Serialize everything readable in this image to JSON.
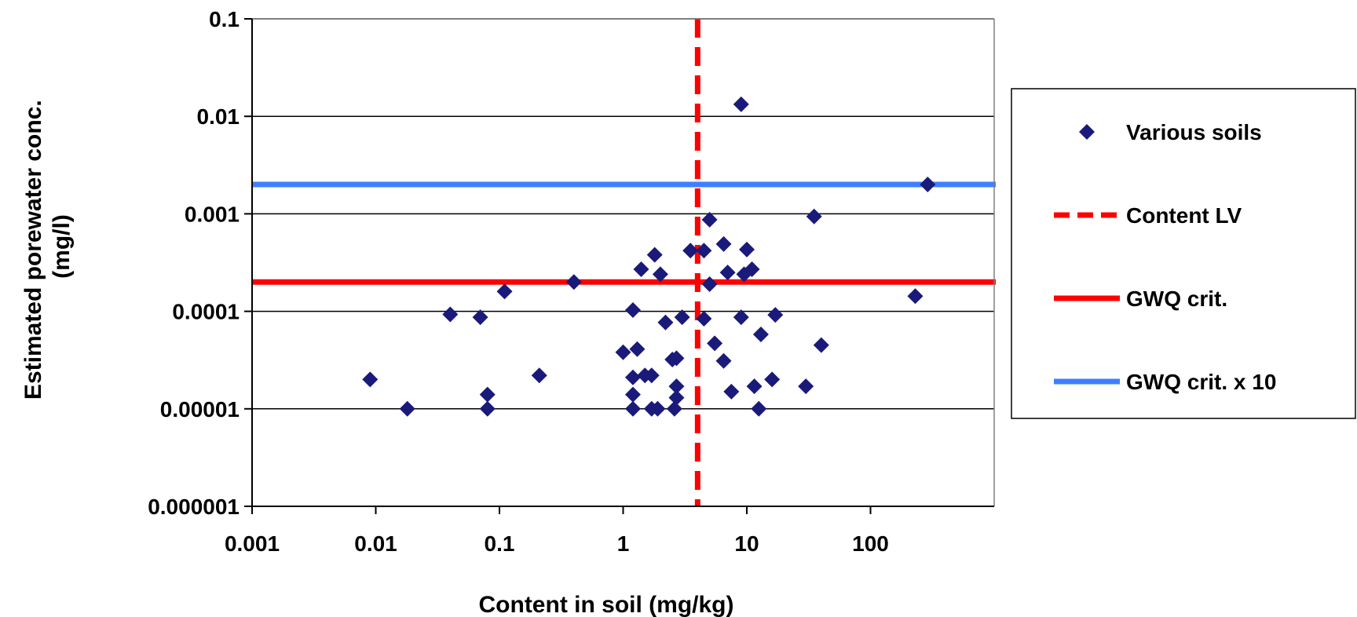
{
  "chart_data": {
    "type": "scatter",
    "title": "",
    "xlabel": "Content  in soil (mg/kg)",
    "ylabel_lines": [
      "Estimated porewater conc.",
      "(mg/l)"
    ],
    "x_scale": "log",
    "y_scale": "log",
    "xlim": [
      0.001,
      1000
    ],
    "ylim": [
      1e-06,
      0.1
    ],
    "x_ticks": [
      0.001,
      0.01,
      0.1,
      1,
      10,
      100
    ],
    "x_tick_labels": [
      "0.001",
      "0.01",
      "0.1",
      "1",
      "10",
      "100"
    ],
    "y_ticks": [
      0.1,
      0.01,
      0.001,
      0.0001,
      1e-05,
      1e-06
    ],
    "y_tick_labels": [
      "0.1",
      "0.01",
      "0.001",
      "0.0001",
      "0.00001",
      "0.000001"
    ],
    "grid": "horizontal major gridlines",
    "legend_position": "right",
    "series": [
      {
        "name": "Various soils",
        "kind": "points",
        "marker": "diamond",
        "color": "#1a1a7a",
        "points": [
          [
            0.009,
            2e-05
          ],
          [
            0.018,
            1e-05
          ],
          [
            0.04,
            9.3e-05
          ],
          [
            0.07,
            8.7e-05
          ],
          [
            0.08,
            1.4e-05
          ],
          [
            0.08,
            1e-05
          ],
          [
            0.11,
            0.00016
          ],
          [
            0.21,
            2.2e-05
          ],
          [
            0.4,
            0.0002
          ],
          [
            1.0,
            3.8e-05
          ],
          [
            1.2,
            2.1e-05
          ],
          [
            1.2,
            1.4e-05
          ],
          [
            1.2,
            1e-05
          ],
          [
            1.2,
            0.000103
          ],
          [
            1.3,
            4.1e-05
          ],
          [
            1.4,
            0.00027
          ],
          [
            1.5,
            2.2e-05
          ],
          [
            1.7,
            2.2e-05
          ],
          [
            1.7,
            1e-05
          ],
          [
            1.8,
            0.00038
          ],
          [
            1.9,
            1e-05
          ],
          [
            2.0,
            0.00024
          ],
          [
            2.2,
            7.7e-05
          ],
          [
            2.5,
            3.2e-05
          ],
          [
            2.6,
            1e-05
          ],
          [
            2.7,
            1.3e-05
          ],
          [
            2.7,
            1.7e-05
          ],
          [
            2.7,
            3.3e-05
          ],
          [
            3.0,
            8.7e-05
          ],
          [
            3.5,
            0.00042
          ],
          [
            4.5,
            8.4e-05
          ],
          [
            4.5,
            0.00042
          ],
          [
            5.0,
            0.00087
          ],
          [
            5.0,
            0.00019
          ],
          [
            5.5,
            4.7e-05
          ],
          [
            6.5,
            3.1e-05
          ],
          [
            6.5,
            0.00049
          ],
          [
            7.0,
            0.00025
          ],
          [
            7.5,
            1.5e-05
          ],
          [
            9.0,
            0.0133
          ],
          [
            9.0,
            8.7e-05
          ],
          [
            9.5,
            0.00024
          ],
          [
            10.0,
            0.00043
          ],
          [
            11.0,
            0.00027
          ],
          [
            11.5,
            1.7e-05
          ],
          [
            12.5,
            1e-05
          ],
          [
            13.0,
            5.8e-05
          ],
          [
            16.0,
            2e-05
          ],
          [
            17.0,
            9.2e-05
          ],
          [
            30.0,
            1.7e-05
          ],
          [
            35.0,
            0.00094
          ],
          [
            40.0,
            4.5e-05
          ],
          [
            230.0,
            0.000143
          ],
          [
            290.0,
            0.002
          ]
        ]
      },
      {
        "name": "Content LV",
        "kind": "vline",
        "x": 4,
        "color": "#ff0000",
        "dashed": true
      },
      {
        "name": "GWQ crit.",
        "kind": "hline",
        "y": 0.0002,
        "color": "#ff0000",
        "dashed": false
      },
      {
        "name": "GWQ crit. x 10",
        "kind": "hline",
        "y": 0.002,
        "color": "#3f7fff",
        "dashed": false
      }
    ]
  }
}
